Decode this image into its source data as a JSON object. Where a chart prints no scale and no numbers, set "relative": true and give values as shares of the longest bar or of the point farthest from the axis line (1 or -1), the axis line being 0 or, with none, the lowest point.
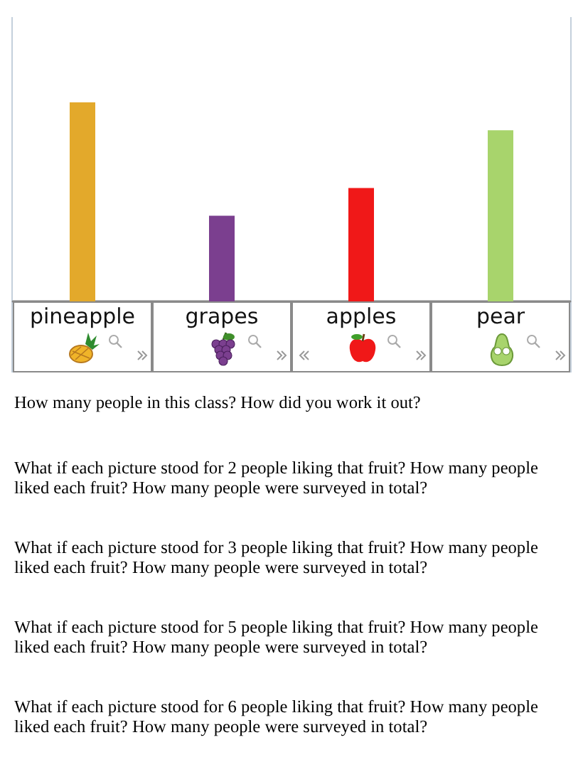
{
  "chart_data": {
    "type": "bar",
    "categories": [
      "pineapple",
      "grapes",
      "apples",
      "pear"
    ],
    "values": [
      1,
      0.43,
      0.57,
      0.86
    ],
    "colors": [
      "#e3a92b",
      "#7b3f8f",
      "#f01818",
      "#a8d46c"
    ],
    "relative": true,
    "annotations": [
      "How many people in this class? How did you work it out?",
      "What if each picture stood for 2 people liking that fruit? How many people liked each fruit? How many people were surveyed in total?",
      "What if each picture stood for 3 people liking that fruit? How many people liked each fruit? How many people were surveyed in total?",
      "What if each picture stood for 5 people liking that fruit? How many people liked each fruit? How many people were surveyed in total?",
      "What if each picture stood for 6 people liking that fruit? How many people liked each fruit? How many people were surveyed in total?"
    ]
  }
}
